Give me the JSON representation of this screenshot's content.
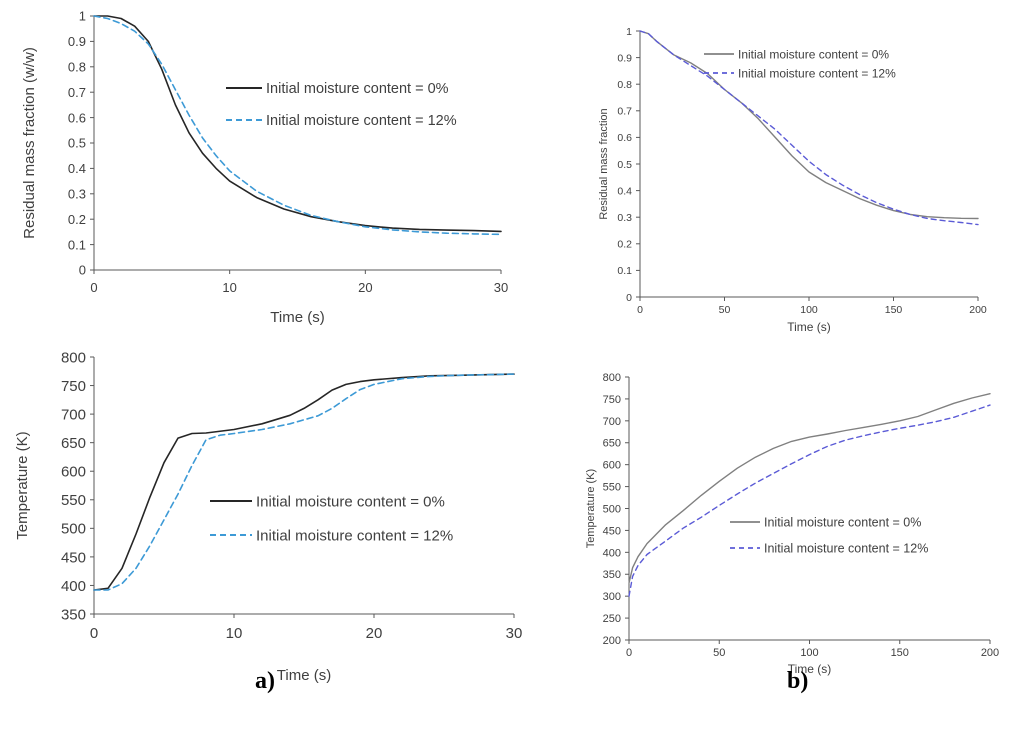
{
  "chart_data": [
    {
      "id": "a_mass",
      "type": "line",
      "xlabel": "Time (s)",
      "ylabel": "Residual mass fraction (w/w)",
      "xlim": [
        0,
        30
      ],
      "ylim": [
        0,
        1
      ],
      "xticks": [
        "0",
        "10",
        "20",
        "30"
      ],
      "yticks": [
        "0",
        "0.1",
        "0.2",
        "0.3",
        "0.4",
        "0.5",
        "0.6",
        "0.7",
        "0.8",
        "0.9",
        "1"
      ],
      "series": [
        {
          "name": "Initial moisture content = 0%",
          "color": "#262626",
          "dash": "",
          "x": [
            0,
            1,
            2,
            3,
            4,
            5,
            6,
            7,
            8,
            9,
            10,
            12,
            14,
            16,
            18,
            20,
            22,
            24,
            26,
            28,
            30
          ],
          "y": [
            1.0,
            1.0,
            0.99,
            0.96,
            0.9,
            0.79,
            0.65,
            0.54,
            0.46,
            0.4,
            0.35,
            0.285,
            0.24,
            0.21,
            0.19,
            0.175,
            0.165,
            0.16,
            0.157,
            0.155,
            0.152
          ]
        },
        {
          "name": "Initial moisture content = 12%",
          "color": "#3d9ad6",
          "dash": "6,4",
          "x": [
            0,
            1,
            2,
            3,
            4,
            5,
            6,
            7,
            8,
            9,
            10,
            12,
            14,
            16,
            18,
            20,
            22,
            24,
            26,
            28,
            30
          ],
          "y": [
            1.0,
            0.99,
            0.97,
            0.94,
            0.89,
            0.81,
            0.71,
            0.61,
            0.52,
            0.45,
            0.39,
            0.31,
            0.255,
            0.215,
            0.19,
            0.17,
            0.158,
            0.15,
            0.145,
            0.142,
            0.14
          ]
        }
      ]
    },
    {
      "id": "b_mass",
      "type": "line",
      "xlabel": "Time (s)",
      "ylabel": "Residual mass fraction",
      "xlim": [
        0,
        200
      ],
      "ylim": [
        0,
        1
      ],
      "xticks": [
        "0",
        "50",
        "100",
        "150",
        "200"
      ],
      "yticks": [
        "0",
        "0.1",
        "0.2",
        "0.3",
        "0.4",
        "0.5",
        "0.6",
        "0.7",
        "0.8",
        "0.9",
        "1"
      ],
      "series": [
        {
          "name": "Initial moisture content = 0%",
          "color": "#808080",
          "dash": "",
          "x": [
            0,
            5,
            10,
            20,
            30,
            40,
            50,
            60,
            70,
            80,
            90,
            100,
            110,
            120,
            130,
            140,
            150,
            160,
            170,
            180,
            190,
            200
          ],
          "y": [
            1.0,
            0.99,
            0.96,
            0.91,
            0.88,
            0.84,
            0.78,
            0.73,
            0.67,
            0.6,
            0.53,
            0.47,
            0.43,
            0.4,
            0.37,
            0.345,
            0.325,
            0.31,
            0.302,
            0.298,
            0.296,
            0.295
          ]
        },
        {
          "name": "Initial moisture content = 12%",
          "color": "#5b5bd6",
          "dash": "5,4",
          "x": [
            0,
            5,
            10,
            20,
            30,
            40,
            50,
            60,
            70,
            80,
            90,
            100,
            110,
            120,
            130,
            140,
            150,
            160,
            170,
            180,
            190,
            200
          ],
          "y": [
            1.0,
            0.99,
            0.96,
            0.91,
            0.87,
            0.83,
            0.78,
            0.73,
            0.68,
            0.63,
            0.57,
            0.51,
            0.46,
            0.42,
            0.385,
            0.355,
            0.33,
            0.31,
            0.295,
            0.287,
            0.28,
            0.272
          ]
        }
      ]
    },
    {
      "id": "a_temp",
      "type": "line",
      "xlabel": "Time (s)",
      "ylabel": "Temperature (K)",
      "xlim": [
        0,
        30
      ],
      "ylim": [
        350,
        800
      ],
      "xticks": [
        "0",
        "10",
        "20",
        "30"
      ],
      "yticks": [
        "350",
        "400",
        "450",
        "500",
        "550",
        "600",
        "650",
        "700",
        "750",
        "800"
      ],
      "series": [
        {
          "name": "Initial moisture content = 0%",
          "color": "#262626",
          "dash": "",
          "x": [
            0,
            1,
            2,
            3,
            4,
            5,
            6,
            7,
            8,
            10,
            12,
            14,
            15,
            16,
            17,
            18,
            19,
            20,
            22,
            24,
            26,
            28,
            30
          ],
          "y": [
            392,
            395,
            430,
            490,
            555,
            615,
            658,
            666,
            667,
            673,
            683,
            698,
            710,
            725,
            742,
            752,
            757,
            760,
            764,
            767,
            768,
            769,
            770
          ]
        },
        {
          "name": "Initial moisture content = 12%",
          "color": "#3d9ad6",
          "dash": "6,4",
          "x": [
            0,
            1,
            2,
            3,
            4,
            5,
            6,
            7,
            8,
            9,
            10,
            12,
            14,
            16,
            17,
            18,
            19,
            20,
            22,
            24,
            26,
            28,
            30
          ],
          "y": [
            392,
            392,
            403,
            430,
            470,
            515,
            560,
            610,
            655,
            663,
            666,
            673,
            683,
            697,
            710,
            727,
            743,
            752,
            762,
            766,
            768,
            769,
            770
          ]
        }
      ]
    },
    {
      "id": "b_temp",
      "type": "line",
      "xlabel": "Time (s)",
      "ylabel": "Temperature (K)",
      "xlim": [
        0,
        200
      ],
      "ylim": [
        200,
        800
      ],
      "xticks": [
        "0",
        "50",
        "100",
        "150",
        "200"
      ],
      "yticks": [
        "200",
        "250",
        "300",
        "350",
        "400",
        "450",
        "500",
        "550",
        "600",
        "650",
        "700",
        "750",
        "800"
      ],
      "series": [
        {
          "name": "Initial moisture content = 0%",
          "color": "#808080",
          "dash": "",
          "x": [
            0,
            2,
            5,
            10,
            20,
            30,
            40,
            50,
            60,
            70,
            80,
            90,
            100,
            110,
            120,
            130,
            140,
            150,
            160,
            170,
            180,
            190,
            200
          ],
          "y": [
            330,
            365,
            390,
            420,
            462,
            495,
            530,
            562,
            592,
            617,
            637,
            653,
            663,
            670,
            678,
            685,
            692,
            700,
            710,
            725,
            740,
            752,
            762
          ]
        },
        {
          "name": "Initial moisture content = 12%",
          "color": "#5b5bd6",
          "dash": "5,4",
          "x": [
            0,
            2,
            5,
            10,
            20,
            30,
            40,
            50,
            60,
            70,
            80,
            90,
            100,
            110,
            120,
            130,
            140,
            150,
            160,
            170,
            180,
            190,
            200
          ],
          "y": [
            300,
            345,
            370,
            395,
            425,
            455,
            480,
            507,
            533,
            558,
            580,
            602,
            623,
            642,
            656,
            666,
            675,
            683,
            690,
            698,
            708,
            722,
            736
          ]
        }
      ]
    }
  ],
  "labels": {
    "a": "a)",
    "b": "b)"
  }
}
